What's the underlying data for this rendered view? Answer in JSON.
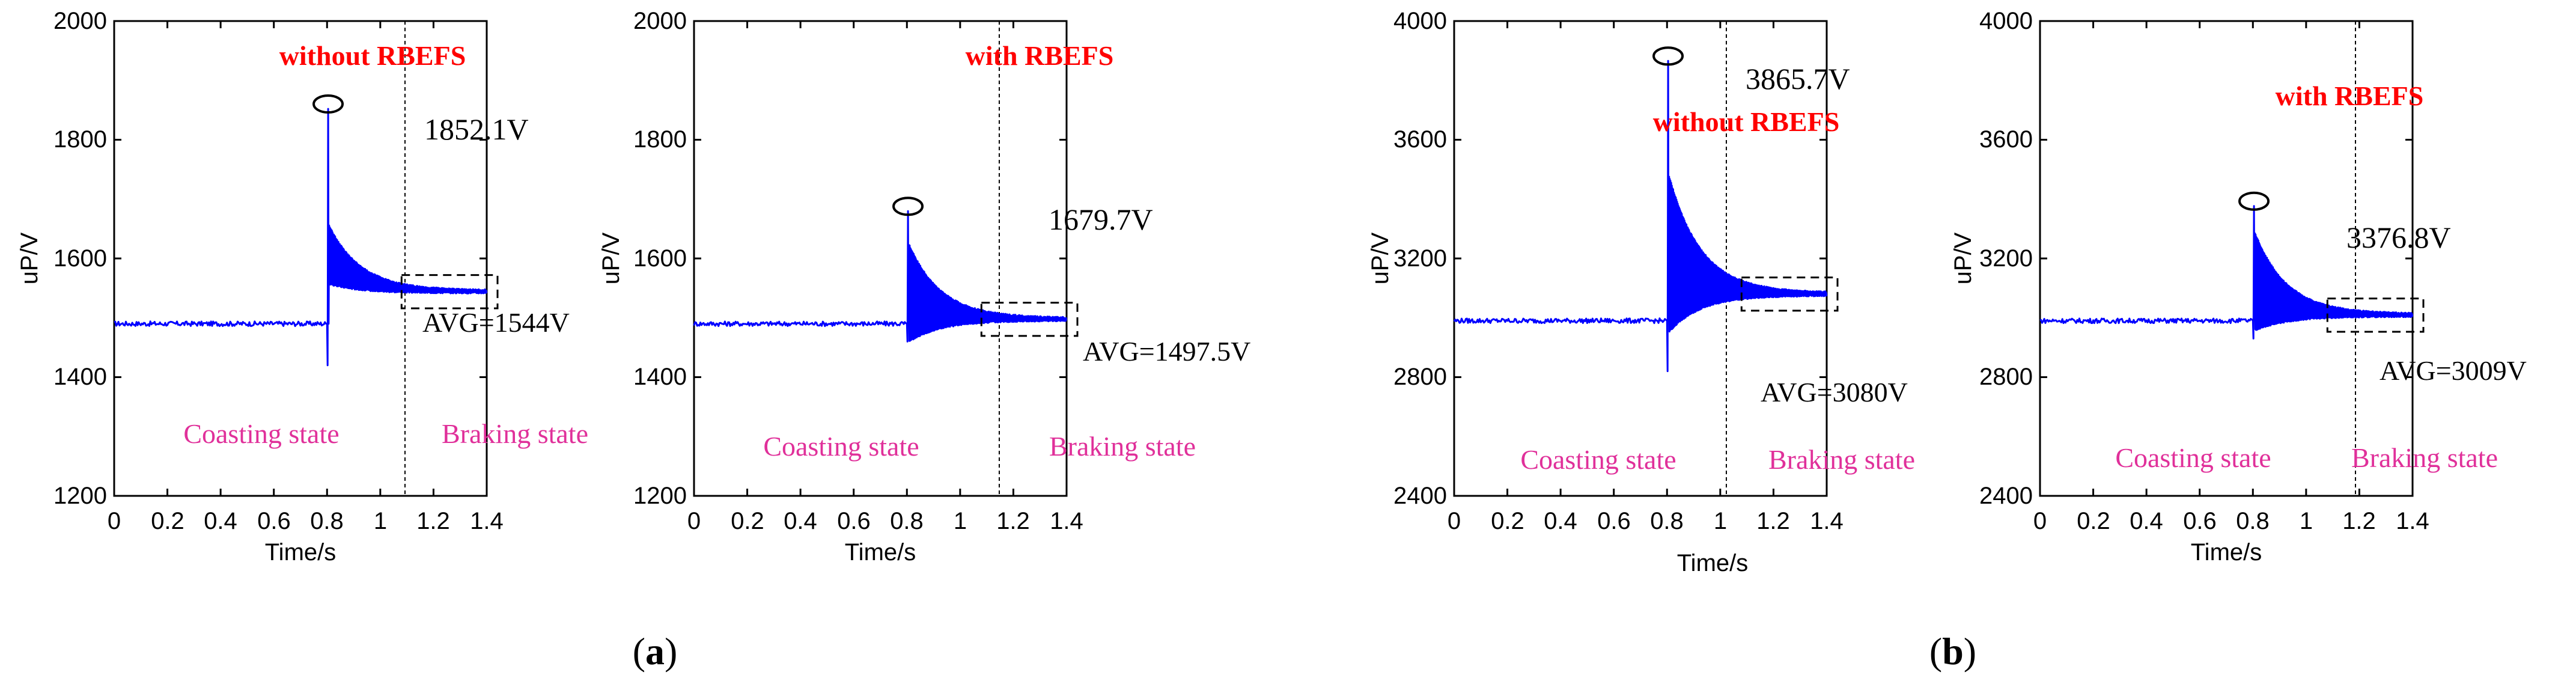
{
  "chart_data": [
    {
      "type": "line",
      "title": "without RBEFS",
      "xlabel": "Time/s",
      "ylabel": "uP/V",
      "xlim": [
        0,
        1.4
      ],
      "ylim": [
        1200,
        2000
      ],
      "xticks": [
        0,
        0.2,
        0.4,
        0.6,
        0.8,
        1,
        1.2,
        1.4
      ],
      "yticks": [
        1200,
        1400,
        1600,
        1800,
        2000
      ],
      "x_tick_labels": [
        "0",
        "0.2",
        "0.4",
        "0.6",
        "0.8",
        "1",
        "1.2",
        "1.4"
      ],
      "y_tick_labels": [
        "1200",
        "1400",
        "1600",
        "1800",
        "2000"
      ],
      "switch_time": 0.8,
      "coasting_level": 1490,
      "peak_value": 1852.1,
      "peak_label": "1852.1V",
      "trough_value": 1420,
      "transient_high": 1660,
      "transient_low": 1560,
      "steady_avg": 1544,
      "avg_label": "AVG=1544V",
      "coasting_label": "Coasting state",
      "braking_label": "Braking state"
    },
    {
      "type": "line",
      "title": "with RBEFS",
      "xlabel": "Time/s",
      "ylabel": "uP/V",
      "xlim": [
        0,
        1.4
      ],
      "ylim": [
        1200,
        2000
      ],
      "xticks": [
        0,
        0.2,
        0.4,
        0.6,
        0.8,
        1,
        1.2,
        1.4
      ],
      "yticks": [
        1200,
        1400,
        1600,
        1800,
        2000
      ],
      "x_tick_labels": [
        "0",
        "0.2",
        "0.4",
        "0.6",
        "0.8",
        "1",
        "1.2",
        "1.4"
      ],
      "y_tick_labels": [
        "1200",
        "1400",
        "1600",
        "1800",
        "2000"
      ],
      "switch_time": 0.8,
      "coasting_level": 1490,
      "peak_value": 1679.7,
      "peak_label": "1679.7V",
      "trough_value": 1460,
      "transient_high": 1630,
      "transient_low": 1460,
      "steady_avg": 1497.5,
      "avg_label": "AVG=1497.5V",
      "coasting_label": "Coasting state",
      "braking_label": "Braking state"
    },
    {
      "type": "line",
      "title": "without RBEFS",
      "xlabel": "Time/s",
      "ylabel": "uP/V",
      "xlim": [
        0,
        1.4
      ],
      "ylim": [
        2400,
        4000
      ],
      "xticks": [
        0,
        0.2,
        0.4,
        0.6,
        0.8,
        1,
        1.2,
        1.4
      ],
      "yticks": [
        2400,
        2800,
        3200,
        3600,
        4000
      ],
      "x_tick_labels": [
        "0",
        "0.2",
        "0.4",
        "0.6",
        "0.8",
        "1",
        "1.2",
        "1.4"
      ],
      "y_tick_labels": [
        "2400",
        "2800",
        "3200",
        "3600",
        "4000"
      ],
      "switch_time": 0.8,
      "coasting_level": 2990,
      "peak_value": 3865.7,
      "peak_label": "3865.7V",
      "trough_value": 2820,
      "transient_high": 3500,
      "transient_low": 2950,
      "steady_avg": 3080,
      "avg_label": "AVG=3080V",
      "coasting_label": "Coasting state",
      "braking_label": "Braking state"
    },
    {
      "type": "line",
      "title": "with RBEFS",
      "xlabel": "Time/s",
      "ylabel": "uP/V",
      "xlim": [
        0,
        1.4
      ],
      "ylim": [
        2400,
        4000
      ],
      "xticks": [
        0,
        0.2,
        0.4,
        0.6,
        0.8,
        1,
        1.2,
        1.4
      ],
      "yticks": [
        2400,
        2800,
        3200,
        3600,
        4000
      ],
      "x_tick_labels": [
        "0",
        "0.2",
        "0.4",
        "0.6",
        "0.8",
        "1",
        "1.2",
        "1.4"
      ],
      "y_tick_labels": [
        "2400",
        "2800",
        "3200",
        "3600",
        "4000"
      ],
      "switch_time": 0.8,
      "coasting_level": 2990,
      "peak_value": 3376.8,
      "peak_label": "3376.8V",
      "trough_value": 2930,
      "transient_high": 3300,
      "transient_low": 2960,
      "steady_avg": 3009,
      "avg_label": "AVG=3009V",
      "coasting_label": "Coasting state",
      "braking_label": "Braking state"
    }
  ],
  "panel_labels": [
    "(a)",
    "(b)"
  ],
  "panel_letters": [
    "a",
    "b"
  ],
  "colors": {
    "signal": "#0000ff",
    "title": "#ff0000",
    "state": "#e0309a",
    "axis": "#000000"
  }
}
